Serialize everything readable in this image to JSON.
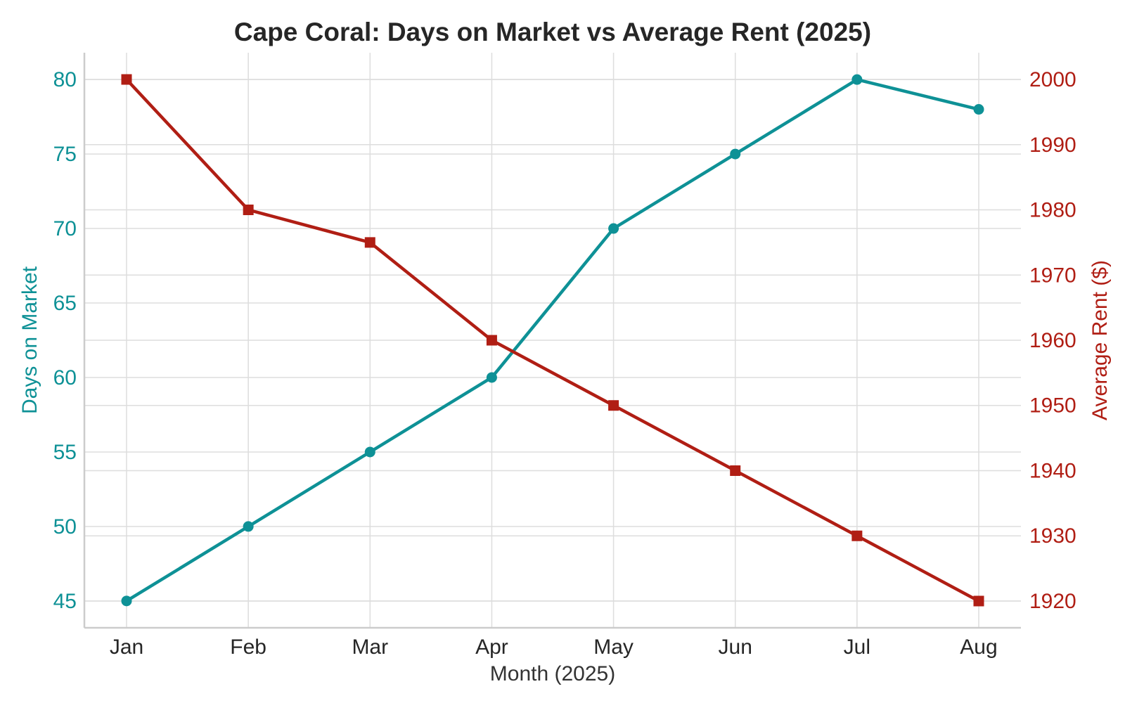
{
  "chart_data": {
    "type": "line",
    "title": "Cape Coral: Days on Market vs Average Rent (2025)",
    "xlabel": "Month (2025)",
    "categories": [
      "Jan",
      "Feb",
      "Mar",
      "Apr",
      "May",
      "Jun",
      "Jul",
      "Aug"
    ],
    "left_axis": {
      "label": "Days on Market",
      "ylim": [
        43.2,
        81.8
      ],
      "ticks": [
        45,
        50,
        55,
        60,
        65,
        70,
        75,
        80
      ],
      "color": "#0e9196"
    },
    "right_axis": {
      "label": "Average Rent ($)",
      "ylim": [
        1915.9,
        2004.1
      ],
      "ticks": [
        1920,
        1930,
        1940,
        1950,
        1960,
        1970,
        1980,
        1990,
        2000
      ],
      "color": "#b01e14"
    },
    "series": [
      {
        "name": "Days on Market",
        "axis": "left",
        "marker": "circle",
        "color": "#0e9196",
        "values": [
          45,
          50,
          55,
          60,
          70,
          75,
          80,
          78
        ]
      },
      {
        "name": "Average Rent ($)",
        "axis": "right",
        "marker": "square",
        "color": "#b01e14",
        "values": [
          2000,
          1980,
          1975,
          1960,
          1950,
          1940,
          1930,
          1920
        ]
      }
    ],
    "grid": true,
    "legend": "none"
  }
}
